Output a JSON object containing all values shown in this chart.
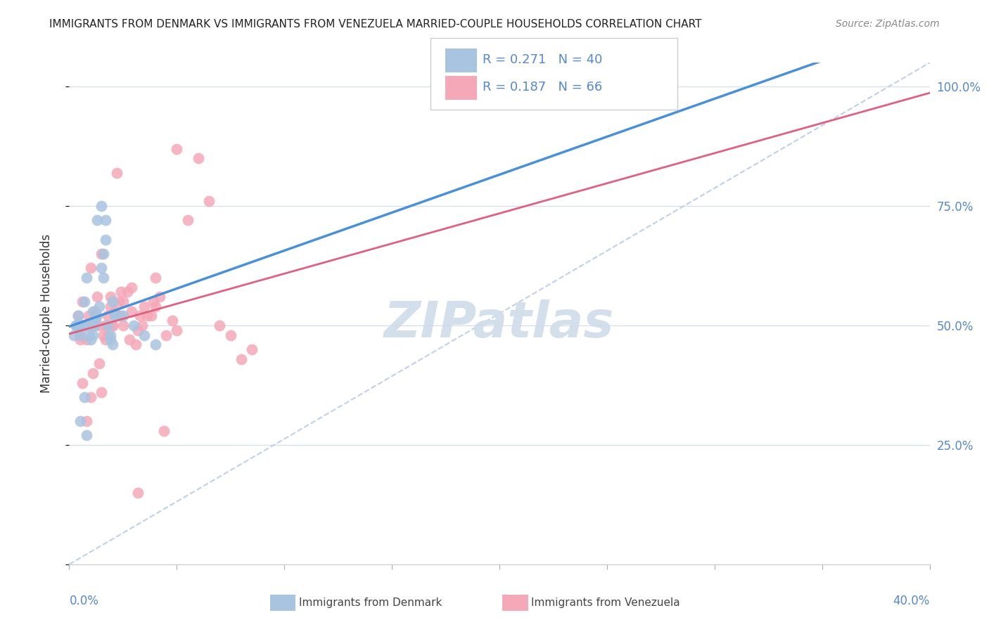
{
  "title": "IMMIGRANTS FROM DENMARK VS IMMIGRANTS FROM VENEZUELA MARRIED-COUPLE HOUSEHOLDS CORRELATION CHART",
  "source": "Source: ZipAtlas.com",
  "ylabel": "Married-couple Households",
  "xlim": [
    0.0,
    0.4
  ],
  "ylim": [
    0.0,
    1.05
  ],
  "denmark_R": 0.271,
  "denmark_N": 40,
  "venezuela_R": 0.187,
  "venezuela_N": 66,
  "denmark_color": "#a8c4e0",
  "venezuela_color": "#f4a8b8",
  "denmark_line_color": "#4a90d9",
  "venezuela_line_color": "#e06080",
  "diagonal_color": "#c0d0e8",
  "denmark_x": [
    0.002,
    0.003,
    0.004,
    0.005,
    0.006,
    0.007,
    0.008,
    0.009,
    0.01,
    0.011,
    0.012,
    0.013,
    0.014,
    0.015,
    0.016,
    0.017,
    0.018,
    0.019,
    0.02,
    0.021,
    0.003,
    0.005,
    0.007,
    0.009,
    0.011,
    0.013,
    0.015,
    0.017,
    0.019,
    0.022,
    0.004,
    0.006,
    0.008,
    0.012,
    0.016,
    0.02,
    0.025,
    0.03,
    0.035,
    0.04
  ],
  "denmark_y": [
    0.48,
    0.5,
    0.52,
    0.3,
    0.5,
    0.55,
    0.6,
    0.48,
    0.47,
    0.53,
    0.5,
    0.52,
    0.54,
    0.62,
    0.65,
    0.68,
    0.5,
    0.47,
    0.46,
    0.52,
    0.5,
    0.48,
    0.35,
    0.5,
    0.48,
    0.72,
    0.75,
    0.72,
    0.48,
    0.52,
    0.5,
    0.5,
    0.27,
    0.51,
    0.6,
    0.55,
    0.52,
    0.5,
    0.48,
    0.46
  ],
  "venezuela_x": [
    0.003,
    0.004,
    0.005,
    0.006,
    0.007,
    0.008,
    0.009,
    0.01,
    0.011,
    0.012,
    0.013,
    0.014,
    0.015,
    0.016,
    0.017,
    0.018,
    0.019,
    0.02,
    0.021,
    0.022,
    0.023,
    0.025,
    0.027,
    0.029,
    0.031,
    0.033,
    0.035,
    0.038,
    0.04,
    0.042,
    0.045,
    0.048,
    0.05,
    0.055,
    0.06,
    0.065,
    0.07,
    0.075,
    0.08,
    0.085,
    0.005,
    0.008,
    0.011,
    0.014,
    0.017,
    0.02,
    0.024,
    0.028,
    0.032,
    0.036,
    0.006,
    0.01,
    0.015,
    0.019,
    0.024,
    0.029,
    0.034,
    0.039,
    0.044,
    0.05,
    0.007,
    0.012,
    0.018,
    0.025,
    0.032,
    0.04
  ],
  "venezuela_y": [
    0.5,
    0.52,
    0.48,
    0.55,
    0.5,
    0.47,
    0.52,
    0.62,
    0.5,
    0.53,
    0.56,
    0.5,
    0.65,
    0.48,
    0.5,
    0.52,
    0.56,
    0.5,
    0.53,
    0.82,
    0.55,
    0.5,
    0.57,
    0.53,
    0.46,
    0.52,
    0.54,
    0.52,
    0.54,
    0.56,
    0.48,
    0.51,
    0.49,
    0.72,
    0.85,
    0.76,
    0.5,
    0.48,
    0.43,
    0.45,
    0.47,
    0.3,
    0.4,
    0.42,
    0.47,
    0.5,
    0.52,
    0.47,
    0.49,
    0.52,
    0.38,
    0.35,
    0.36,
    0.54,
    0.57,
    0.58,
    0.5,
    0.55,
    0.28,
    0.87,
    0.5,
    0.52,
    0.48,
    0.55,
    0.15,
    0.6
  ],
  "watermark": "ZIPatlas",
  "watermark_color": "#d0dcea",
  "background_color": "#ffffff",
  "grid_color": "#d8e0ec",
  "tick_label_color": "#5588cc"
}
